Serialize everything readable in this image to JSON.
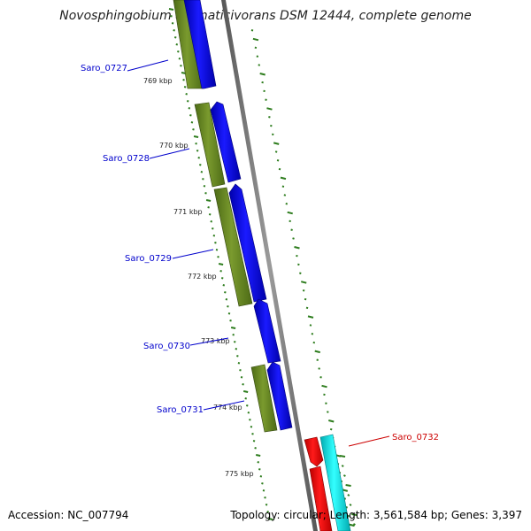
{
  "title": "Novosphingobium aromaticivorans DSM 12444, complete genome",
  "footer": {
    "accession": "Accession: NC_007794",
    "stats": "Topology: circular; Length: 3,561,584 bp; Genes: 3,397"
  },
  "colors": {
    "backbone": "#8a8a8a",
    "cds_forward": "#0000ee",
    "cds_forward_dark": "#000088",
    "gene_forward": "#6b8e23",
    "gene_forward_dark": "#3d5a14",
    "cds_reverse": "#ff0000",
    "cds_reverse_dark": "#990000",
    "gene_reverse": "#00e5ee",
    "gene_reverse_dark": "#009aa0",
    "label_forward": "#0000cc",
    "label_reverse": "#cc0000",
    "ticks": "#2e7d1e"
  },
  "scale": {
    "ticks": [
      {
        "label": "769 kbp"
      },
      {
        "label": "770 kbp"
      },
      {
        "label": "771 kbp"
      },
      {
        "label": "772 kbp"
      },
      {
        "label": "773 kbp"
      },
      {
        "label": "774 kbp"
      },
      {
        "label": "775 kbp"
      }
    ]
  },
  "genes": [
    {
      "locus": "Saro_0727",
      "strand": "forward"
    },
    {
      "locus": "Saro_0728",
      "strand": "forward"
    },
    {
      "locus": "Saro_0729",
      "strand": "forward"
    },
    {
      "locus": "Saro_0730",
      "strand": "forward"
    },
    {
      "locus": "Saro_0731",
      "strand": "forward"
    },
    {
      "locus": "Saro_0732",
      "strand": "reverse"
    }
  ]
}
